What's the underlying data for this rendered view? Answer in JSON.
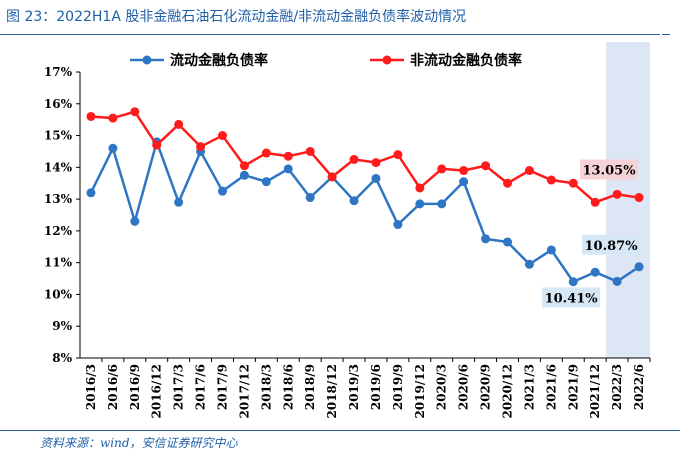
{
  "title": "图 23：2022H1A 股非金融石油石化流动金融/非流动金融负债率波动情况",
  "source": "资料来源：wind，安信证券研究中心",
  "chart_data": {
    "type": "line",
    "categories": [
      "2016/3",
      "2016/6",
      "2016/9",
      "2016/12",
      "2017/3",
      "2017/6",
      "2017/9",
      "2017/12",
      "2018/3",
      "2018/6",
      "2018/9",
      "2018/12",
      "2019/3",
      "2019/6",
      "2019/9",
      "2019/12",
      "2020/3",
      "2020/6",
      "2020/9",
      "2020/12",
      "2021/3",
      "2021/6",
      "2021/9",
      "2021/12",
      "2022/3",
      "2022/6"
    ],
    "ylim": [
      8,
      17
    ],
    "yticks": [
      "8%",
      "9%",
      "10%",
      "11%",
      "12%",
      "13%",
      "14%",
      "15%",
      "16%",
      "17%"
    ],
    "legend_position": "top",
    "highlight_categories": [
      "2022/3",
      "2022/6"
    ],
    "series": [
      {
        "name": "流动金融负债率",
        "color": "#2e75c4",
        "values": [
          13.2,
          14.6,
          12.3,
          14.8,
          12.9,
          14.5,
          13.25,
          13.75,
          13.55,
          13.95,
          13.05,
          13.7,
          12.95,
          13.65,
          12.2,
          12.85,
          12.85,
          13.55,
          11.75,
          11.65,
          10.95,
          11.4,
          10.4,
          10.7,
          10.41,
          10.87
        ]
      },
      {
        "name": "非流动金融负债率",
        "color": "#ff1b1b",
        "values": [
          15.6,
          15.55,
          15.75,
          14.7,
          15.35,
          14.65,
          15.0,
          14.05,
          14.45,
          14.35,
          14.5,
          13.7,
          14.25,
          14.15,
          14.4,
          13.35,
          13.95,
          13.9,
          14.05,
          13.5,
          13.9,
          13.6,
          13.5,
          12.9,
          13.15,
          13.05
        ]
      }
    ],
    "data_labels": [
      {
        "series": 0,
        "category": "2022/6",
        "text": "10.87%",
        "bg": "#d6e7f5"
      },
      {
        "series": 0,
        "category": "2022/3",
        "text": "10.41%",
        "bg": "#d6e7f5"
      },
      {
        "series": 1,
        "category": "2022/6",
        "text": "13.05%",
        "bg": "#f6d3d6"
      }
    ]
  }
}
